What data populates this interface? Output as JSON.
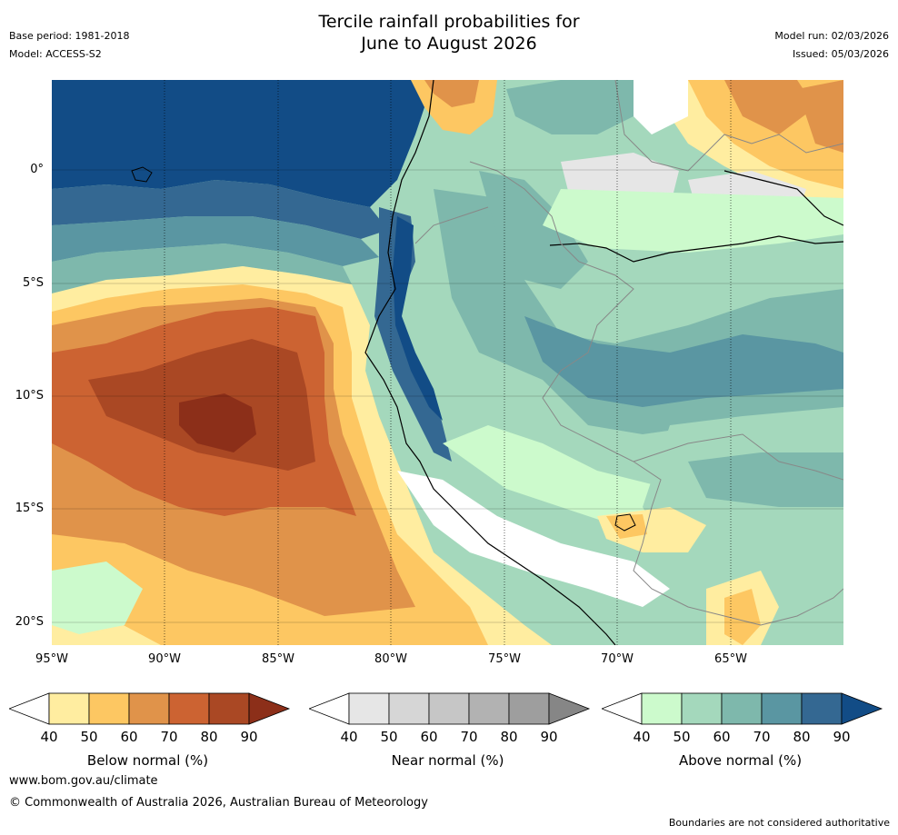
{
  "header": {
    "title_line1": "Tercile rainfall probabilities for",
    "title_line2": "June to August 2026",
    "base_period": "Base period: 1981-2018",
    "model": "Model: ACCESS-S2",
    "model_run": "Model run: 02/03/2026",
    "issued": "Issued: 05/03/2026"
  },
  "map": {
    "lat_labels": [
      "0°",
      "5°S",
      "10°S",
      "15°S",
      "20°S"
    ],
    "lon_labels": [
      "95°W",
      "90°W",
      "85°W",
      "80°W",
      "75°W",
      "70°W",
      "65°W"
    ]
  },
  "colorbars": [
    {
      "label": "Below normal (%)",
      "ticks": [
        "40",
        "50",
        "60",
        "70",
        "80",
        "90"
      ],
      "colors": [
        "#ffffff",
        "#ffeda0",
        "#fdc762",
        "#e0934a",
        "#cc6332",
        "#aa4824",
        "#8c2f19"
      ]
    },
    {
      "label": "Near normal (%)",
      "ticks": [
        "40",
        "50",
        "60",
        "70",
        "80",
        "90"
      ],
      "colors": [
        "#ffffff",
        "#e6e6e6",
        "#d6d6d6",
        "#c6c6c6",
        "#b2b2b2",
        "#9e9e9e",
        "#868686"
      ]
    },
    {
      "label": "Above normal (%)",
      "ticks": [
        "40",
        "50",
        "60",
        "70",
        "80",
        "90"
      ],
      "colors": [
        "#ffffff",
        "#ccfacc",
        "#a4d8bc",
        "#7eb8ac",
        "#5a96a2",
        "#346892",
        "#124c86"
      ]
    }
  ],
  "footer": {
    "website": "www.bom.gov.au/climate",
    "copyright": "© Commonwealth of Australia 2026, Australian Bureau of Meteorology",
    "disclaimer": "Boundaries are not considered authoritative"
  }
}
